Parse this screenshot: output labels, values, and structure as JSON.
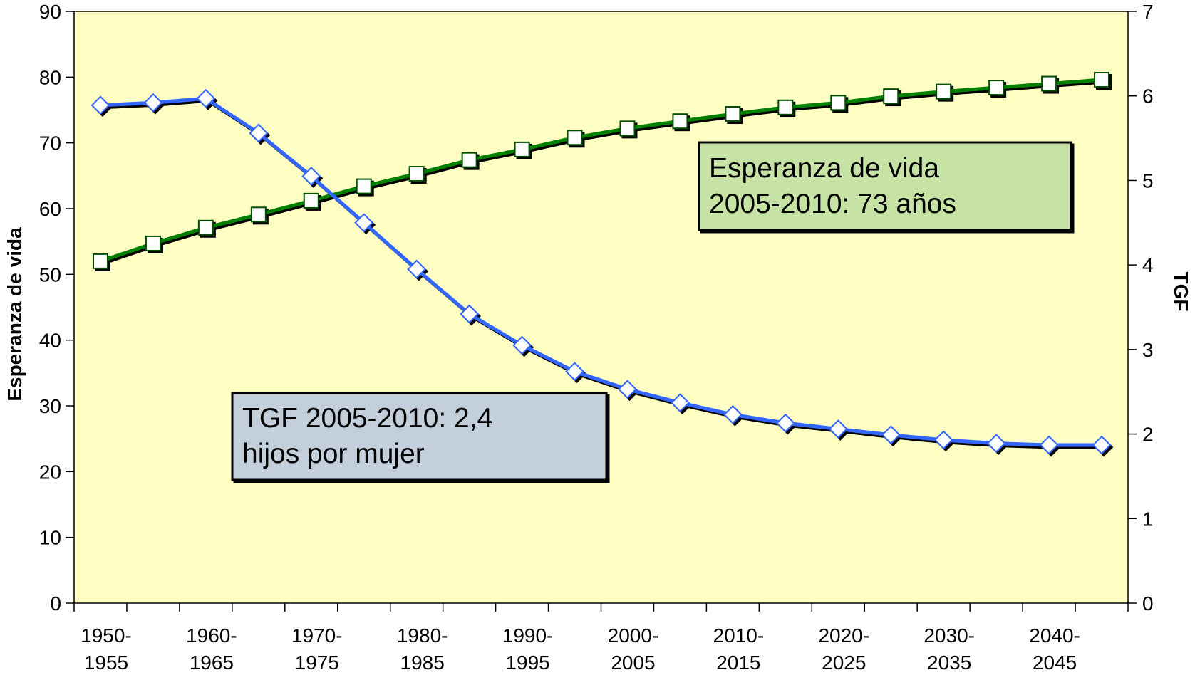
{
  "chart_data": {
    "type": "line",
    "categories": [
      "1950-\n1955",
      null,
      "1960-\n1965",
      null,
      "1970-\n1975",
      null,
      "1980-\n1985",
      null,
      "1990-\n1995",
      null,
      "2000-\n2005",
      null,
      "2010-\n2015",
      null,
      "2020-\n2025",
      null,
      "2030-\n2035",
      null,
      "2040-\n2045",
      null
    ],
    "series": [
      {
        "name": "Esperanza de vida",
        "color": "#008000",
        "marker": "square",
        "axis": "y",
        "values": [
          52.0,
          54.7,
          57.1,
          59.1,
          61.2,
          63.4,
          65.3,
          67.4,
          69.0,
          70.8,
          72.2,
          73.3,
          74.4,
          75.4,
          76.1,
          77.1,
          77.8,
          78.4,
          79.0,
          79.6
        ]
      },
      {
        "name": "TGF",
        "color": "#3366ff",
        "marker": "diamond",
        "axis": "y2",
        "values": [
          5.89,
          5.92,
          5.97,
          5.56,
          5.05,
          4.5,
          3.95,
          3.42,
          3.05,
          2.74,
          2.53,
          2.37,
          2.23,
          2.13,
          2.06,
          1.99,
          1.93,
          1.89,
          1.87,
          1.87
        ]
      }
    ],
    "ylabel": "Esperanza de vida",
    "y2label": "TGF",
    "ylim": [
      0,
      90
    ],
    "yticks": [
      0,
      10,
      20,
      30,
      40,
      50,
      60,
      70,
      80,
      90
    ],
    "y2lim": [
      0,
      7
    ],
    "y2ticks": [
      0,
      1,
      2,
      3,
      4,
      5,
      6,
      7
    ],
    "grid": false,
    "plot_background": "#ffffc4",
    "annotations": [
      {
        "text": "Esperanza de vida\n2005-2010:  73 años",
        "color": "#c6e3a5"
      },
      {
        "text": "TGF 2005-2010:  2,4\nhijos por mujer",
        "color": "#c3cfdb"
      }
    ]
  }
}
